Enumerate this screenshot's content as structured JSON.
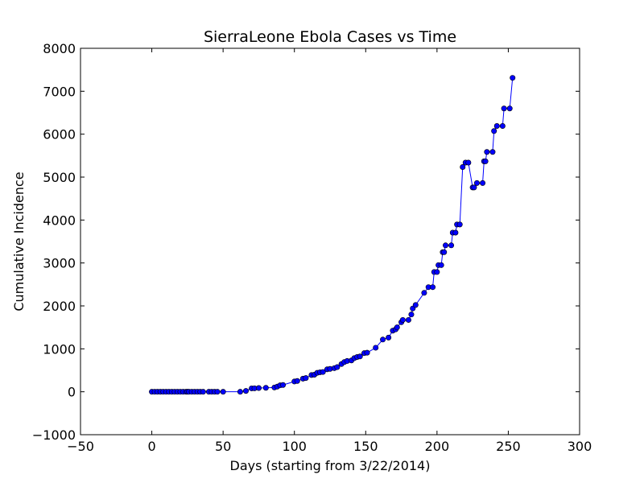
{
  "chart_data": {
    "type": "line",
    "title": "SierraLeone Ebola Cases vs Time",
    "xlabel": "Days (starting from 3/22/2014)",
    "ylabel": "Cumulative Incidence",
    "xlim": [
      -50,
      300
    ],
    "ylim": [
      -1000,
      8000
    ],
    "xticks": [
      -50,
      0,
      50,
      100,
      150,
      200,
      250,
      300
    ],
    "yticks": [
      -1000,
      0,
      1000,
      2000,
      3000,
      4000,
      5000,
      6000,
      7000,
      8000
    ],
    "xtick_labels": [
      "−50",
      "0",
      "50",
      "100",
      "150",
      "200",
      "250",
      "300"
    ],
    "ytick_labels": [
      "−1000",
      "0",
      "1000",
      "2000",
      "3000",
      "4000",
      "5000",
      "6000",
      "7000",
      "8000"
    ],
    "grid": false,
    "legend": "none",
    "colors": {
      "series": "#0000ff",
      "marker_edge": "#000000"
    },
    "series": [
      {
        "marker": "circle",
        "points": [
          [
            0,
            0
          ],
          [
            2,
            0
          ],
          [
            4,
            0
          ],
          [
            6,
            1
          ],
          [
            8,
            0
          ],
          [
            10,
            0
          ],
          [
            12,
            0
          ],
          [
            14,
            0
          ],
          [
            16,
            0
          ],
          [
            18,
            0
          ],
          [
            20,
            0
          ],
          [
            22,
            0
          ],
          [
            24,
            0
          ],
          [
            25,
            1
          ],
          [
            26,
            0
          ],
          [
            28,
            0
          ],
          [
            30,
            0
          ],
          [
            32,
            0
          ],
          [
            34,
            0
          ],
          [
            36,
            0
          ],
          [
            40,
            0
          ],
          [
            42,
            0
          ],
          [
            44,
            0
          ],
          [
            46,
            0
          ],
          [
            50,
            0
          ],
          [
            62,
            0
          ],
          [
            66,
            20
          ],
          [
            70,
            79
          ],
          [
            72,
            81
          ],
          [
            75,
            87
          ],
          [
            80,
            92
          ],
          [
            86,
            100
          ],
          [
            88,
            120
          ],
          [
            90,
            150
          ],
          [
            92,
            158
          ],
          [
            100,
            239
          ],
          [
            102,
            252
          ],
          [
            106,
            305
          ],
          [
            108,
            320
          ],
          [
            112,
            390
          ],
          [
            114,
            397
          ],
          [
            116,
            442
          ],
          [
            118,
            454
          ],
          [
            120,
            461
          ],
          [
            123,
            524
          ],
          [
            125,
            533
          ],
          [
            128,
            550
          ],
          [
            130,
            574
          ],
          [
            133,
            646
          ],
          [
            135,
            691
          ],
          [
            137,
            717
          ],
          [
            140,
            730
          ],
          [
            142,
            783
          ],
          [
            144,
            810
          ],
          [
            146,
            823
          ],
          [
            149,
            900
          ],
          [
            151,
            910
          ],
          [
            157,
            1026
          ],
          [
            162,
            1216
          ],
          [
            166,
            1261
          ],
          [
            169,
            1424
          ],
          [
            171,
            1453
          ],
          [
            172,
            1500
          ],
          [
            175,
            1620
          ],
          [
            176,
            1673
          ],
          [
            180,
            1673
          ],
          [
            182,
            1800
          ],
          [
            183,
            1940
          ],
          [
            185,
            2021
          ],
          [
            191,
            2304
          ],
          [
            194,
            2437
          ],
          [
            197,
            2437
          ],
          [
            198,
            2789
          ],
          [
            200,
            2789
          ],
          [
            201,
            2950
          ],
          [
            203,
            2950
          ],
          [
            204,
            3252
          ],
          [
            205,
            3252
          ],
          [
            206,
            3410
          ],
          [
            210,
            3410
          ],
          [
            211,
            3706
          ],
          [
            213,
            3706
          ],
          [
            214,
            3896
          ],
          [
            216,
            3896
          ],
          [
            218,
            5235
          ],
          [
            220,
            5338
          ],
          [
            222,
            5338
          ],
          [
            225,
            4759
          ],
          [
            226,
            4759
          ],
          [
            228,
            4862
          ],
          [
            232,
            4862
          ],
          [
            233,
            5368
          ],
          [
            234,
            5368
          ],
          [
            235,
            5586
          ],
          [
            239,
            5586
          ],
          [
            240,
            6073
          ],
          [
            242,
            6190
          ],
          [
            246,
            6190
          ],
          [
            247,
            6599
          ],
          [
            251,
            6599
          ],
          [
            253,
            7312
          ]
        ]
      }
    ]
  }
}
